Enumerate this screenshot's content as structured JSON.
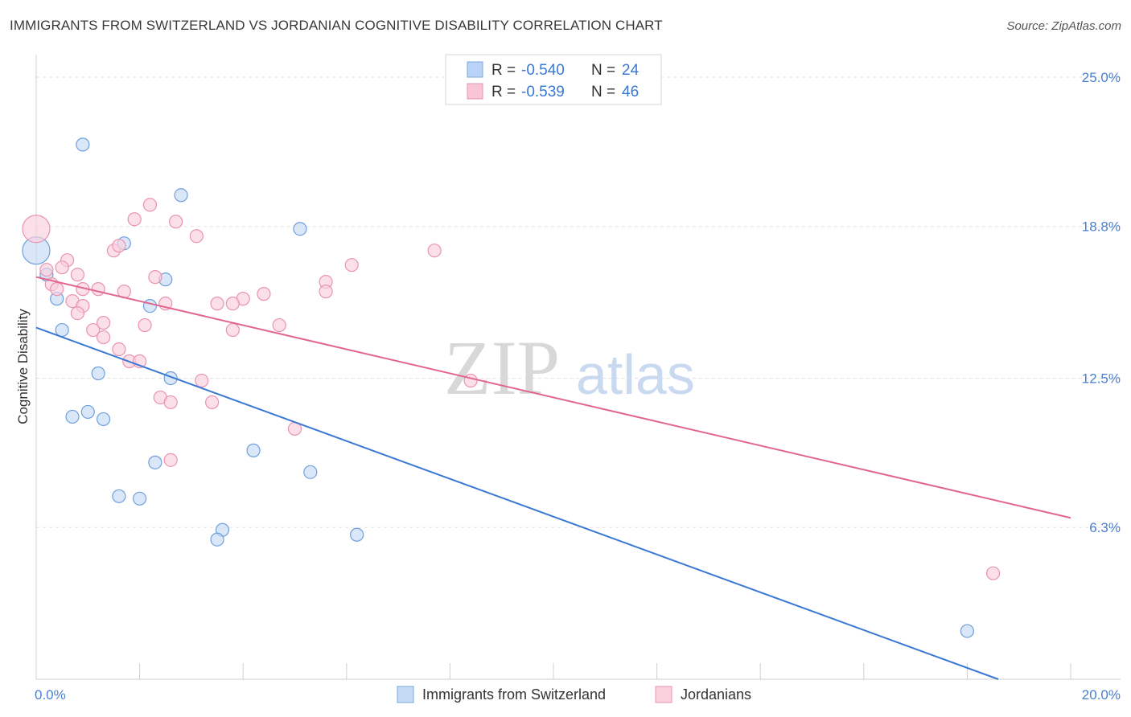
{
  "title": "IMMIGRANTS FROM SWITZERLAND VS JORDANIAN COGNITIVE DISABILITY CORRELATION CHART",
  "source": "Source: ZipAtlas.com",
  "watermark": {
    "zip": "ZIP",
    "atlas": "atlas"
  },
  "legend": {
    "r_label": "R =",
    "n_label": "N =",
    "rows": [
      {
        "r": "-0.540",
        "n": "24",
        "fill": "#b8d3f5",
        "stroke": "#7aa6e0"
      },
      {
        "r": "-0.539",
        "n": "46",
        "fill": "#f9c4d4",
        "stroke": "#e896b0"
      }
    ]
  },
  "colors": {
    "blue": "#3a78d4",
    "pink": "#e06690",
    "blue_fill": "#c5daf5",
    "pink_fill": "#fad0dd",
    "tick_text": "#4a7fcf",
    "grid": "#e2e2e2"
  },
  "chart_data": {
    "type": "scatter",
    "title": "IMMIGRANTS FROM SWITZERLAND VS JORDANIAN COGNITIVE DISABILITY CORRELATION CHART",
    "xlabel": "",
    "ylabel": "Cognitive Disability",
    "xlim": [
      0,
      20
    ],
    "ylim": [
      0,
      25.6
    ],
    "x_tick_labels": [
      "0.0%",
      "20.0%"
    ],
    "y_ticks": [
      6.3,
      12.5,
      18.8,
      25.0
    ],
    "y_tick_labels": [
      "6.3%",
      "12.5%",
      "18.8%",
      "25.0%"
    ],
    "grid": "horizontal dashed",
    "legend_position": "top-center",
    "series": [
      {
        "name": "Immigrants from Switzerland",
        "color": "#3a78d4",
        "r": -0.54,
        "n": 24,
        "trend": {
          "x": [
            0,
            18.6
          ],
          "y": [
            14.6,
            0.0
          ]
        },
        "points": [
          {
            "x": 0.0,
            "y": 17.8,
            "big": true
          },
          {
            "x": 0.9,
            "y": 22.2
          },
          {
            "x": 2.8,
            "y": 20.1
          },
          {
            "x": 5.1,
            "y": 18.7
          },
          {
            "x": 1.7,
            "y": 18.1
          },
          {
            "x": 0.2,
            "y": 16.8
          },
          {
            "x": 2.5,
            "y": 16.6
          },
          {
            "x": 0.4,
            "y": 15.8
          },
          {
            "x": 2.2,
            "y": 15.5
          },
          {
            "x": 0.5,
            "y": 14.5
          },
          {
            "x": 1.2,
            "y": 12.7
          },
          {
            "x": 2.6,
            "y": 12.5
          },
          {
            "x": 1.0,
            "y": 11.1
          },
          {
            "x": 0.7,
            "y": 10.9
          },
          {
            "x": 1.3,
            "y": 10.8
          },
          {
            "x": 4.2,
            "y": 9.5
          },
          {
            "x": 2.3,
            "y": 9.0
          },
          {
            "x": 5.3,
            "y": 8.6
          },
          {
            "x": 1.6,
            "y": 7.6
          },
          {
            "x": 2.0,
            "y": 7.5
          },
          {
            "x": 3.6,
            "y": 6.2
          },
          {
            "x": 3.5,
            "y": 5.8
          },
          {
            "x": 6.2,
            "y": 6.0
          },
          {
            "x": 18.0,
            "y": 2.0
          }
        ]
      },
      {
        "name": "Jordanians",
        "color": "#e06690",
        "r": -0.539,
        "n": 46,
        "trend": {
          "x": [
            0,
            20
          ],
          "y": [
            16.7,
            6.7
          ]
        },
        "points": [
          {
            "x": 0.0,
            "y": 18.7,
            "big": true
          },
          {
            "x": 2.2,
            "y": 19.7
          },
          {
            "x": 1.9,
            "y": 19.1
          },
          {
            "x": 2.7,
            "y": 19.0
          },
          {
            "x": 3.1,
            "y": 18.4
          },
          {
            "x": 1.5,
            "y": 17.8
          },
          {
            "x": 1.6,
            "y": 18.0
          },
          {
            "x": 7.7,
            "y": 17.8
          },
          {
            "x": 0.6,
            "y": 17.4
          },
          {
            "x": 0.5,
            "y": 17.1
          },
          {
            "x": 6.1,
            "y": 17.2
          },
          {
            "x": 0.2,
            "y": 17.0
          },
          {
            "x": 0.8,
            "y": 16.8
          },
          {
            "x": 2.3,
            "y": 16.7
          },
          {
            "x": 0.3,
            "y": 16.4
          },
          {
            "x": 0.4,
            "y": 16.2
          },
          {
            "x": 5.6,
            "y": 16.5
          },
          {
            "x": 1.2,
            "y": 16.2
          },
          {
            "x": 0.9,
            "y": 16.2
          },
          {
            "x": 1.7,
            "y": 16.1
          },
          {
            "x": 4.4,
            "y": 16.0
          },
          {
            "x": 5.6,
            "y": 16.1
          },
          {
            "x": 4.0,
            "y": 15.8
          },
          {
            "x": 0.7,
            "y": 15.7
          },
          {
            "x": 3.5,
            "y": 15.6
          },
          {
            "x": 3.8,
            "y": 15.6
          },
          {
            "x": 2.5,
            "y": 15.6
          },
          {
            "x": 0.9,
            "y": 15.5
          },
          {
            "x": 0.8,
            "y": 15.2
          },
          {
            "x": 1.3,
            "y": 14.8
          },
          {
            "x": 2.1,
            "y": 14.7
          },
          {
            "x": 4.7,
            "y": 14.7
          },
          {
            "x": 3.8,
            "y": 14.5
          },
          {
            "x": 1.1,
            "y": 14.5
          },
          {
            "x": 1.3,
            "y": 14.2
          },
          {
            "x": 1.6,
            "y": 13.7
          },
          {
            "x": 1.8,
            "y": 13.2
          },
          {
            "x": 2.0,
            "y": 13.2
          },
          {
            "x": 3.2,
            "y": 12.4
          },
          {
            "x": 8.4,
            "y": 12.4
          },
          {
            "x": 2.4,
            "y": 11.7
          },
          {
            "x": 2.6,
            "y": 11.5
          },
          {
            "x": 3.4,
            "y": 11.5
          },
          {
            "x": 5.0,
            "y": 10.4
          },
          {
            "x": 2.6,
            "y": 9.1
          },
          {
            "x": 18.5,
            "y": 4.4
          }
        ]
      }
    ]
  }
}
